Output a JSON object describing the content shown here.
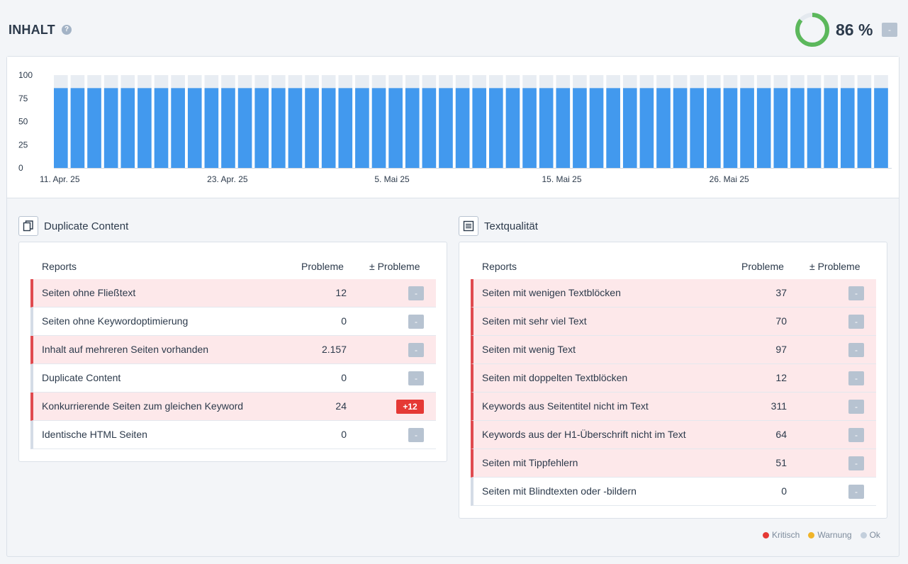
{
  "header": {
    "title": "INHALT",
    "help": "?",
    "score": "86 %",
    "score_badge": "-"
  },
  "donut": {
    "value": 86,
    "color": "#5cb85c",
    "track": "#e4e9ef"
  },
  "chart_data": {
    "type": "bar",
    "y_ticks": [
      "100",
      "75",
      "50",
      "25",
      "0"
    ],
    "ylim": [
      0,
      100
    ],
    "x_tick_labels": [
      "11. Apr. 25",
      "23. Apr. 25",
      "5. Mai 25",
      "15. Mai 25",
      "26. Mai 25"
    ],
    "bar_count": 50,
    "value": 86,
    "max": 100,
    "bar_color": "#4299ee",
    "track_color": "#e8edf3"
  },
  "duplicate": {
    "title": "Duplicate Content",
    "icon": "duplicate-icon",
    "columns": [
      "Reports",
      "Probleme",
      "± Probleme"
    ],
    "rows": [
      {
        "label": "Seiten ohne Fließtext",
        "value": "12",
        "delta": "-",
        "status": "crit"
      },
      {
        "label": "Seiten ohne Keywordoptimierung",
        "value": "0",
        "delta": "-",
        "status": "ok"
      },
      {
        "label": "Inhalt auf mehreren Seiten vorhanden",
        "value": "2.157",
        "delta": "-",
        "status": "crit"
      },
      {
        "label": "Duplicate Content",
        "value": "0",
        "delta": "-",
        "status": "ok"
      },
      {
        "label": "Konkurrierende Seiten zum gleichen Keyword",
        "value": "24",
        "delta": "+12",
        "status": "crit"
      },
      {
        "label": "Identische HTML Seiten",
        "value": "0",
        "delta": "-",
        "status": "ok"
      }
    ]
  },
  "textquality": {
    "title": "Textqualität",
    "icon": "document-text-icon",
    "columns": [
      "Reports",
      "Probleme",
      "± Probleme"
    ],
    "rows": [
      {
        "label": "Seiten mit wenigen Textblöcken",
        "value": "37",
        "delta": "-",
        "status": "crit"
      },
      {
        "label": "Seiten mit sehr viel Text",
        "value": "70",
        "delta": "-",
        "status": "crit"
      },
      {
        "label": "Seiten mit wenig Text",
        "value": "97",
        "delta": "-",
        "status": "crit"
      },
      {
        "label": "Seiten mit doppelten Textblöcken",
        "value": "12",
        "delta": "-",
        "status": "crit"
      },
      {
        "label": "Keywords aus Seitentitel nicht im Text",
        "value": "311",
        "delta": "-",
        "status": "crit"
      },
      {
        "label": "Keywords aus der H1-Überschrift nicht im Text",
        "value": "64",
        "delta": "-",
        "status": "crit"
      },
      {
        "label": "Seiten mit Tippfehlern",
        "value": "51",
        "delta": "-",
        "status": "crit"
      },
      {
        "label": "Seiten mit Blindtexten oder -bildern",
        "value": "0",
        "delta": "-",
        "status": "ok"
      }
    ]
  },
  "legend": [
    {
      "label": "Kritisch",
      "color": "#e53935"
    },
    {
      "label": "Warnung",
      "color": "#f0b429"
    },
    {
      "label": "Ok",
      "color": "#c3cfdc"
    }
  ]
}
